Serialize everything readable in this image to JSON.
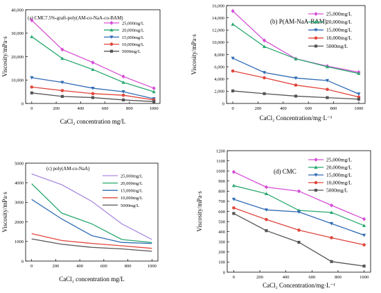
{
  "chart_data": [
    {
      "type": "line",
      "title": "(a) CMC7.5%-graft-poly(AM-co-NaA-co-BAM)",
      "xlabel": "CaCl₂ concentration mg/L",
      "ylabel": "Viscosity/mPa·s",
      "x": [
        0,
        250,
        500,
        750,
        1000
      ],
      "xticks": [
        "0",
        "200",
        "400",
        "600",
        "800",
        "1000"
      ],
      "xtick_values": [
        0,
        200,
        400,
        600,
        800,
        1000
      ],
      "yticks": [
        "0",
        "10,000",
        "20,000",
        "30,000",
        "40,000"
      ],
      "ytick_values": [
        0,
        10000,
        20000,
        30000,
        40000
      ],
      "xlim": [
        -50,
        1050
      ],
      "ylim": [
        0,
        40000
      ],
      "legend": "top-right",
      "series": [
        {
          "name": "25,000mg/L",
          "color": "#d54fd6",
          "marker": "diamond",
          "values": [
            35500,
            23000,
            17500,
            11500,
            6500
          ]
        },
        {
          "name": "20,000mg/L",
          "color": "#27a86e",
          "marker": "triangle",
          "values": [
            28500,
            19200,
            14500,
            9000,
            5000
          ]
        },
        {
          "name": "15,000mg/L",
          "color": "#2f6bb3",
          "marker": "triangle-down",
          "values": [
            11000,
            9000,
            6500,
            5000,
            2000
          ]
        },
        {
          "name": "10,000mg/L",
          "color": "#e0463c",
          "marker": "circle",
          "values": [
            7000,
            5500,
            4200,
            3500,
            1500
          ]
        },
        {
          "name": "5000mg/L",
          "color": "#555555",
          "marker": "square",
          "values": [
            4500,
            3000,
            2500,
            1500,
            800
          ]
        }
      ]
    },
    {
      "type": "line",
      "title": "(b) P(AM-NaA-BAM)",
      "xlabel": "CaCl₂ Concentration/mg·L⁻¹",
      "ylabel": "Viscosity/mPa·s",
      "x": [
        0,
        250,
        500,
        750,
        1000
      ],
      "xticks": [
        "0",
        "200",
        "400",
        "600",
        "800",
        "1000"
      ],
      "xtick_values": [
        0,
        200,
        400,
        600,
        800,
        1000
      ],
      "yticks": [
        "0",
        "2,000",
        "4,000",
        "6,000",
        "8,000",
        "10,000",
        "12,000",
        "14,000",
        "16,000"
      ],
      "ytick_values": [
        0,
        2000,
        4000,
        6000,
        8000,
        10000,
        12000,
        14000,
        16000
      ],
      "xlim": [
        -50,
        1050
      ],
      "ylim": [
        0,
        16000
      ],
      "legend": "top-right",
      "series": [
        {
          "name": "25,000mg/L",
          "color": "#d54fd6",
          "marker": "diamond",
          "values": [
            15100,
            10300,
            7300,
            6100,
            5100
          ]
        },
        {
          "name": "20,000mg/L",
          "color": "#27a86e",
          "marker": "triangle",
          "values": [
            12950,
            9300,
            7300,
            6000,
            4900
          ]
        },
        {
          "name": "15,000mg/L",
          "color": "#2f6bb3",
          "marker": "triangle-down",
          "values": [
            7400,
            5050,
            4150,
            3750,
            1550
          ]
        },
        {
          "name": "10,000mg/L",
          "color": "#e0463c",
          "marker": "circle",
          "values": [
            5300,
            4200,
            3000,
            2300,
            1050
          ]
        },
        {
          "name": "5000mg/L",
          "color": "#555555",
          "marker": "square",
          "values": [
            2050,
            1600,
            1200,
            950,
            700
          ]
        }
      ]
    },
    {
      "type": "line",
      "title": "(c) poly(AM-co-NaA)",
      "xlabel": "CaCl₂ concentration mg/L",
      "ylabel": "Viscosity/mPa·s",
      "x": [
        0,
        250,
        500,
        750,
        1000
      ],
      "xticks": [
        "0",
        "200",
        "400",
        "600",
        "800",
        "1000"
      ],
      "xtick_values": [
        0,
        200,
        400,
        600,
        800,
        1000
      ],
      "yticks": [
        "0",
        "1000",
        "2000",
        "3000",
        "4000",
        "5000"
      ],
      "ytick_values": [
        0,
        1000,
        2000,
        3000,
        4000,
        5000
      ],
      "xlim": [
        -50,
        1050
      ],
      "ylim": [
        0,
        5000
      ],
      "legend": "top-right",
      "series": [
        {
          "name": "25,000mg/L",
          "color": "#a98be0",
          "marker": "none",
          "values": [
            4450,
            3900,
            3050,
            1900,
            1100
          ]
        },
        {
          "name": "20,000mg/L",
          "color": "#27a86e",
          "marker": "none",
          "values": [
            3950,
            2450,
            1900,
            1100,
            950
          ]
        },
        {
          "name": "15,000mg/L",
          "color": "#2f6bb3",
          "marker": "none",
          "values": [
            3150,
            2150,
            1300,
            950,
            900
          ]
        },
        {
          "name": "10,000mg/L",
          "color": "#e0463c",
          "marker": "none",
          "values": [
            1400,
            1050,
            900,
            780,
            650
          ]
        },
        {
          "name": "5000mg/L",
          "color": "#555555",
          "marker": "none",
          "values": [
            1130,
            860,
            700,
            620,
            500
          ]
        }
      ]
    },
    {
      "type": "line",
      "title": "(d) CMC",
      "xlabel": "CaCl₂ Concentration/mg·L⁻¹",
      "ylabel": "Viscosity/mPa·s",
      "x": [
        0,
        250,
        500,
        750,
        1000
      ],
      "xticks": [
        "0",
        "200",
        "400",
        "600",
        "800",
        "1000"
      ],
      "xtick_values": [
        0,
        200,
        400,
        600,
        800,
        1000
      ],
      "yticks": [
        "0",
        "100",
        "200",
        "300",
        "400",
        "500",
        "600",
        "700",
        "800",
        "900",
        "1000",
        "1100",
        "1200"
      ],
      "ytick_values": [
        0,
        100,
        200,
        300,
        400,
        500,
        600,
        700,
        800,
        900,
        1000,
        1100,
        1200
      ],
      "xlim": [
        -50,
        1050
      ],
      "ylim": [
        0,
        1200
      ],
      "legend": "top-right",
      "series": [
        {
          "name": "25,000mg/L",
          "color": "#d54fd6",
          "marker": "diamond",
          "values": [
            990,
            840,
            800,
            660,
            525
          ]
        },
        {
          "name": "20,000mg/L",
          "color": "#27a86e",
          "marker": "triangle",
          "values": [
            855,
            775,
            610,
            590,
            460
          ]
        },
        {
          "name": "15,000mg/L",
          "color": "#2f6bb3",
          "marker": "triangle-down",
          "values": [
            720,
            615,
            595,
            480,
            365
          ]
        },
        {
          "name": "10,000mg/L",
          "color": "#e0463c",
          "marker": "circle",
          "values": [
            635,
            520,
            415,
            340,
            270
          ]
        },
        {
          "name": "5000mg/L",
          "color": "#555555",
          "marker": "square",
          "values": [
            580,
            410,
            295,
            105,
            60
          ]
        }
      ]
    }
  ]
}
